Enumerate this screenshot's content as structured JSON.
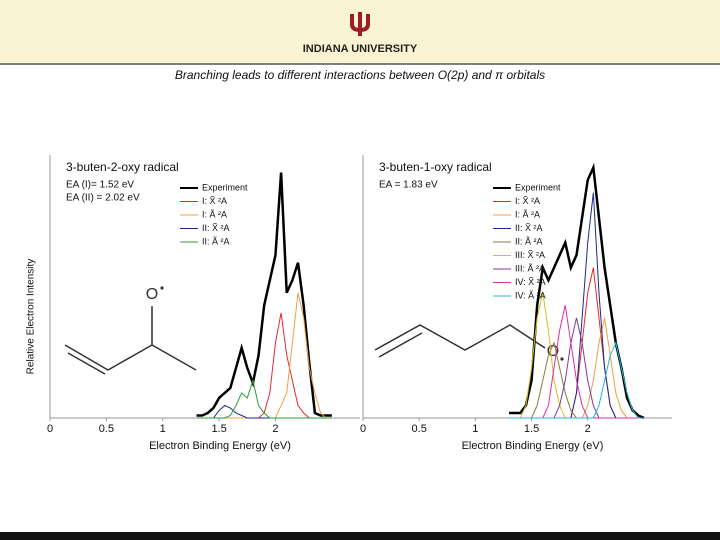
{
  "header": {
    "title": "INDIANA UNIVERSITY"
  },
  "slide": {
    "caption": "Branching leads to different interactions between O(2p) and π orbitals"
  },
  "chart_data": [
    {
      "type": "line",
      "title": "3-buten-2-oxy radical",
      "annotations": [
        "EA (I)= 1.52 eV",
        "EA (II) = 2.02 eV"
      ],
      "structure_atom": "O",
      "xlabel": "Electron Binding Energy (eV)",
      "ylabel": "Relative Electron Intensity",
      "xlim": [
        0,
        2.75
      ],
      "ylim": [
        0,
        1.05
      ],
      "xticks": [
        0,
        0.5,
        1,
        1.5,
        2
      ],
      "x": [
        1.3,
        1.35,
        1.4,
        1.45,
        1.5,
        1.55,
        1.6,
        1.65,
        1.7,
        1.75,
        1.8,
        1.85,
        1.9,
        1.95,
        2.0,
        2.05,
        2.1,
        2.15,
        2.2,
        2.25,
        2.3,
        2.35,
        2.4,
        2.45,
        2.5
      ],
      "series": [
        {
          "name": "Experiment",
          "color": "#000000",
          "values": [
            0.01,
            0.01,
            0.02,
            0.04,
            0.08,
            0.1,
            0.12,
            0.2,
            0.28,
            0.2,
            0.14,
            0.25,
            0.45,
            0.55,
            0.65,
            0.98,
            0.5,
            0.55,
            0.62,
            0.45,
            0.22,
            0.02,
            0.01,
            0.01,
            0.01
          ]
        },
        {
          "name": "I: X̃  ²A",
          "color": "#e8262a",
          "values": [
            0,
            0,
            0,
            0,
            0,
            0,
            0,
            0,
            0,
            0,
            0,
            0,
            0.02,
            0.1,
            0.3,
            0.42,
            0.25,
            0.15,
            0.05,
            0.02,
            0,
            0,
            0,
            0,
            0
          ]
        },
        {
          "name": "I: Ã  ²A",
          "color": "#f0a040",
          "values": [
            0,
            0,
            0,
            0,
            0,
            0,
            0,
            0,
            0,
            0,
            0,
            0,
            0,
            0,
            0,
            0.05,
            0.1,
            0.3,
            0.5,
            0.4,
            0.2,
            0.1,
            0.02,
            0,
            0
          ]
        },
        {
          "name": "II: X̃  ²A",
          "color": "#1e2a8c",
          "values": [
            0,
            0,
            0,
            0,
            0.03,
            0.05,
            0.04,
            0.02,
            0.01,
            0,
            0,
            0,
            0,
            0,
            0,
            0,
            0,
            0,
            0,
            0,
            0,
            0,
            0,
            0,
            0
          ]
        },
        {
          "name": "II: Ã  ²A",
          "color": "#2e9a3a",
          "values": [
            0,
            0,
            0,
            0,
            0,
            0,
            0.01,
            0.05,
            0.1,
            0.08,
            0.15,
            0.05,
            0.02,
            0,
            0,
            0,
            0,
            0,
            0,
            0,
            0,
            0,
            0,
            0,
            0
          ]
        }
      ]
    },
    {
      "type": "line",
      "title": "3-buten-1-oxy radical",
      "annotations": [
        "EA = 1.83 eV"
      ],
      "structure_atom": "O",
      "xlabel": "Electron Binding Energy (eV)",
      "xlim": [
        0,
        2.75
      ],
      "ylim": [
        0,
        1.05
      ],
      "xticks": [
        0,
        0.5,
        1,
        1.5,
        2
      ],
      "x": [
        1.3,
        1.35,
        1.4,
        1.45,
        1.5,
        1.55,
        1.6,
        1.65,
        1.7,
        1.75,
        1.8,
        1.85,
        1.9,
        1.95,
        2.0,
        2.05,
        2.1,
        2.15,
        2.2,
        2.25,
        2.3,
        2.35,
        2.4,
        2.45,
        2.5
      ],
      "series": [
        {
          "name": "Experiment",
          "color": "#000000",
          "values": [
            0.02,
            0.02,
            0.02,
            0.05,
            0.15,
            0.45,
            0.6,
            0.55,
            0.6,
            0.65,
            0.7,
            0.6,
            0.65,
            0.8,
            0.95,
            1.0,
            0.8,
            0.6,
            0.45,
            0.3,
            0.2,
            0.08,
            0.03,
            0.01,
            0
          ]
        },
        {
          "name": "I: X̃  ²A",
          "color": "#e8262a",
          "values": [
            0,
            0,
            0,
            0,
            0,
            0,
            0,
            0,
            0,
            0,
            0,
            0,
            0.1,
            0.3,
            0.5,
            0.6,
            0.4,
            0.2,
            0.05,
            0,
            0,
            0,
            0,
            0,
            0
          ]
        },
        {
          "name": "I: Ã  ²A",
          "color": "#f0a040",
          "values": [
            0,
            0,
            0,
            0,
            0,
            0,
            0,
            0,
            0,
            0,
            0,
            0,
            0,
            0,
            0.05,
            0.15,
            0.3,
            0.4,
            0.25,
            0.1,
            0.03,
            0,
            0,
            0,
            0
          ]
        },
        {
          "name": "II: X̃  ²A",
          "color": "#1e2a8c",
          "values": [
            0,
            0,
            0,
            0,
            0,
            0,
            0,
            0,
            0,
            0,
            0,
            0,
            0.1,
            0.4,
            0.7,
            0.9,
            0.5,
            0.2,
            0.05,
            0,
            0,
            0,
            0,
            0,
            0
          ]
        },
        {
          "name": "II: Ã  ²A",
          "color": "#8a7a3a",
          "values": [
            0,
            0,
            0,
            0,
            0,
            0.05,
            0.15,
            0.25,
            0.3,
            0.2,
            0.1,
            0.03,
            0,
            0,
            0,
            0,
            0,
            0,
            0,
            0,
            0,
            0,
            0,
            0,
            0
          ]
        },
        {
          "name": "III: X̃  ²A",
          "color": "#d4c020",
          "values": [
            0,
            0,
            0,
            0.05,
            0.2,
            0.4,
            0.5,
            0.35,
            0.15,
            0.05,
            0,
            0,
            0,
            0,
            0,
            0,
            0,
            0,
            0,
            0,
            0,
            0,
            0,
            0,
            0
          ]
        },
        {
          "name": "III: Ã  ²A",
          "color": "#7a3aa0",
          "values": [
            0,
            0,
            0,
            0,
            0,
            0,
            0,
            0,
            0,
            0.05,
            0.15,
            0.3,
            0.4,
            0.3,
            0.15,
            0.05,
            0,
            0,
            0,
            0,
            0,
            0,
            0,
            0,
            0
          ]
        },
        {
          "name": "IV: X̃  ²A",
          "color": "#e02aa8",
          "values": [
            0,
            0,
            0,
            0,
            0,
            0,
            0,
            0.05,
            0.2,
            0.35,
            0.45,
            0.3,
            0.15,
            0.05,
            0,
            0,
            0,
            0,
            0,
            0,
            0,
            0,
            0,
            0,
            0
          ]
        },
        {
          "name": "IV: Ã  ²A",
          "color": "#20b8d0",
          "values": [
            0,
            0,
            0,
            0,
            0,
            0,
            0,
            0,
            0,
            0,
            0,
            0,
            0,
            0,
            0,
            0,
            0.05,
            0.15,
            0.25,
            0.3,
            0.2,
            0.1,
            0.03,
            0,
            0
          ]
        }
      ]
    }
  ]
}
